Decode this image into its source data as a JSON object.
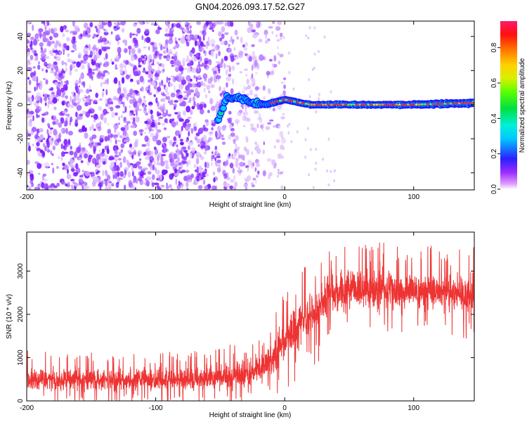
{
  "figure_title": "GN04.2026.093.17.52.G27",
  "chart_data": [
    {
      "type": "heatmap",
      "title": "GN04.2026.093.17.52.G27",
      "xlabel": "Height of straight line (km)",
      "ylabel": "Frequency (Hz)",
      "xlim": [
        -200,
        147
      ],
      "ylim": [
        -50,
        49
      ],
      "xticks": [
        -200,
        -100,
        0,
        100
      ],
      "xtick_labels": [
        "-200",
        "-100",
        "0",
        "100"
      ],
      "yticks": [
        -40,
        -20,
        0,
        20,
        40
      ],
      "ytick_labels": [
        "-40",
        "-20",
        "0",
        "20",
        "40"
      ],
      "colorbar": {
        "label": "Normalized spectral amplitude",
        "range": [
          0.0,
          0.95
        ],
        "ticks": [
          0.0,
          0.2,
          0.4,
          0.6,
          0.8
        ],
        "tick_labels": [
          "0.0",
          "0.2",
          "0.4",
          "0.6",
          "0.8"
        ],
        "colormap": "rainbow (magenta-blue-cyan-green-yellow-red)"
      },
      "description_points": {
        "noise_region_x": [
          -200,
          -20
        ],
        "signal_onset_x": -52,
        "signal_frequency_hz": 0,
        "signal_track": [
          {
            "x": -52,
            "y": -10
          },
          {
            "x": -45,
            "y": 4
          },
          {
            "x": -35,
            "y": 4
          },
          {
            "x": -25,
            "y": 1
          },
          {
            "x": -15,
            "y": 0
          },
          {
            "x": 0,
            "y": 3
          },
          {
            "x": 20,
            "y": 0
          },
          {
            "x": 60,
            "y": 0
          },
          {
            "x": 100,
            "y": 0
          },
          {
            "x": 147,
            "y": 1
          }
        ]
      }
    },
    {
      "type": "line",
      "xlabel": "Height of straight line (km)",
      "ylabel": "SNR (10 * v/v)",
      "xlim": [
        -200,
        147
      ],
      "ylim": [
        0,
        3900
      ],
      "xticks": [
        -200,
        -100,
        0,
        100
      ],
      "xtick_labels": [
        "-200",
        "-100",
        "0",
        "100"
      ],
      "yticks": [
        0,
        1000,
        2000,
        3000
      ],
      "ytick_labels": [
        "0",
        "1000",
        "2000",
        "3000"
      ],
      "series": [
        {
          "name": "SNR",
          "color": "#ee3333",
          "envelope_x": [
            -200,
            -150,
            -100,
            -60,
            -30,
            -15,
            -5,
            5,
            15,
            25,
            32,
            50,
            80,
            110,
            147
          ],
          "envelope_low": [
            150,
            150,
            150,
            150,
            150,
            300,
            500,
            800,
            1100,
            1300,
            1600,
            1900,
            1900,
            1850,
            1800
          ],
          "envelope_high": [
            900,
            900,
            850,
            950,
            1100,
            1300,
            1800,
            2300,
            2700,
            2900,
            3200,
            3300,
            3200,
            3150,
            3100
          ],
          "envelope_mid": [
            500,
            480,
            480,
            520,
            600,
            800,
            1200,
            1600,
            1900,
            2100,
            2500,
            2600,
            2550,
            2500,
            2450
          ]
        }
      ]
    }
  ],
  "colors": {
    "snr_line": "#ee3333",
    "axis": "#000000",
    "background": "#ffffff"
  }
}
